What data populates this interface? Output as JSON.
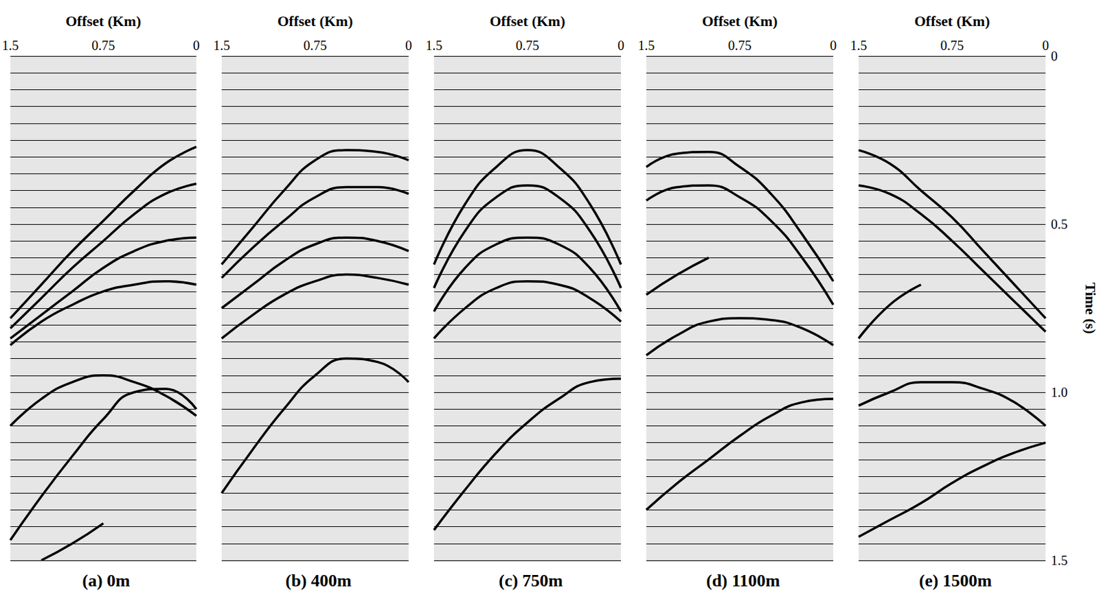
{
  "chart_data": [
    {
      "type": "line",
      "title": "(a) 0m",
      "xlabel": "Offset (Km)",
      "xlim": [
        0,
        1.5
      ],
      "xticks": [
        0,
        0.75,
        1.5
      ],
      "ylim": [
        0,
        1.5
      ],
      "yticks": [
        0,
        0.5,
        {
          "value": 1,
          "label": "1.0"
        },
        1.5
      ],
      "grid": true,
      "tick_labels": "x",
      "x": [
        0,
        0.25,
        0.5,
        0.75,
        1.0,
        1.25,
        1.5
      ],
      "series": [
        {
          "color": "#000000",
          "values": [
            0.27,
            0.32,
            0.4,
            0.49,
            0.58,
            0.68,
            0.78
          ]
        },
        {
          "color": "#000000",
          "values": [
            0.38,
            0.41,
            0.47,
            0.55,
            0.63,
            0.72,
            0.81
          ]
        },
        {
          "color": "#000000",
          "values": [
            0.54,
            0.55,
            0.58,
            0.63,
            0.7,
            0.77,
            0.84
          ]
        },
        {
          "color": "#000000",
          "values": [
            0.68,
            0.67,
            0.68,
            0.7,
            0.74,
            0.79,
            0.86
          ]
        },
        {
          "color": "#000000",
          "values": [
            1.07,
            1.01,
            0.97,
            0.95,
            0.97,
            1.02,
            1.1
          ]
        },
        {
          "color": "#000000",
          "values": [
            1.05,
            0.99,
            1.0,
            1.08,
            1.19,
            1.31,
            1.44
          ]
        },
        {
          "color": "#000000",
          "values": [
            null,
            null,
            null,
            1.39,
            1.45,
            1.5,
            null
          ]
        }
      ]
    },
    {
      "type": "line",
      "title": "(b) 400m",
      "xlabel": "Offset (Km)",
      "xlim": [
        0,
        1.5
      ],
      "xticks": [
        0,
        0.75,
        1.5
      ],
      "ylim": [
        0,
        1.5
      ],
      "yticks": [
        0,
        0.5,
        {
          "value": 1,
          "label": "1.0"
        },
        1.5
      ],
      "grid": true,
      "tick_labels": "x",
      "x": [
        0,
        0.25,
        0.5,
        0.75,
        1.0,
        1.25,
        1.5
      ],
      "series": [
        {
          "color": "#000000",
          "values": [
            0.31,
            0.285,
            0.28,
            0.31,
            0.4,
            0.51,
            0.62
          ]
        },
        {
          "color": "#000000",
          "values": [
            0.41,
            0.39,
            0.39,
            0.42,
            0.49,
            0.57,
            0.66
          ]
        },
        {
          "color": "#000000",
          "values": [
            0.58,
            0.55,
            0.54,
            0.56,
            0.61,
            0.68,
            0.75
          ]
        },
        {
          "color": "#000000",
          "values": [
            0.68,
            0.66,
            0.65,
            0.67,
            0.71,
            0.77,
            0.84
          ]
        },
        {
          "color": "#000000",
          "values": [
            0.97,
            0.91,
            0.9,
            0.95,
            1.05,
            1.17,
            1.3
          ]
        }
      ]
    },
    {
      "type": "line",
      "title": "(c) 750m",
      "xlabel": "Offset (Km)",
      "xlim": [
        0,
        1.5
      ],
      "xticks": [
        0,
        0.75,
        1.5
      ],
      "ylim": [
        0,
        1.5
      ],
      "yticks": [
        0,
        0.5,
        {
          "value": 1,
          "label": "1.0"
        },
        1.5
      ],
      "grid": true,
      "tick_labels": "x",
      "x": [
        0,
        0.25,
        0.5,
        0.75,
        1.0,
        1.25,
        1.5
      ],
      "series": [
        {
          "color": "#000000",
          "values": [
            0.62,
            0.44,
            0.33,
            0.28,
            0.33,
            0.44,
            0.62
          ]
        },
        {
          "color": "#000000",
          "values": [
            0.69,
            0.52,
            0.42,
            0.385,
            0.42,
            0.52,
            0.69
          ]
        },
        {
          "color": "#000000",
          "values": [
            0.76,
            0.63,
            0.56,
            0.54,
            0.56,
            0.63,
            0.76
          ]
        },
        {
          "color": "#000000",
          "values": [
            0.79,
            0.72,
            0.68,
            0.67,
            0.69,
            0.75,
            0.84
          ]
        },
        {
          "color": "#000000",
          "values": [
            0.96,
            0.97,
            1.02,
            1.09,
            1.18,
            1.29,
            1.41
          ]
        }
      ]
    },
    {
      "type": "line",
      "title": "(d) 1100m",
      "xlabel": "Offset (Km)",
      "xlim": [
        0,
        1.5
      ],
      "xticks": [
        0,
        0.75,
        1.5
      ],
      "ylim": [
        0,
        1.5
      ],
      "yticks": [
        0,
        0.5,
        {
          "value": 1,
          "label": "1.0"
        },
        1.5
      ],
      "grid": true,
      "tick_labels": "x",
      "x": [
        0,
        0.25,
        0.5,
        0.75,
        1.0,
        1.25,
        1.5
      ],
      "series": [
        {
          "color": "#000000",
          "values": [
            0.67,
            0.53,
            0.41,
            0.33,
            0.285,
            0.29,
            0.33
          ]
        },
        {
          "color": "#000000",
          "values": [
            0.74,
            0.6,
            0.49,
            0.42,
            0.385,
            0.39,
            0.43
          ]
        },
        {
          "color": "#000000",
          "values": [
            null,
            null,
            null,
            null,
            0.6,
            0.65,
            0.71
          ]
        },
        {
          "color": "#000000",
          "values": [
            0.86,
            0.81,
            0.785,
            0.78,
            0.79,
            0.83,
            0.89
          ]
        },
        {
          "color": "#000000",
          "values": [
            1.02,
            1.03,
            1.07,
            1.13,
            1.2,
            1.27,
            1.35
          ]
        }
      ]
    },
    {
      "type": "line",
      "title": "(e) 1500m",
      "xlabel": "Offset (Km)",
      "ylabel": "Time (s)",
      "xlim": [
        0,
        1.5
      ],
      "xticks": [
        0,
        0.75,
        1.5
      ],
      "ylim": [
        0,
        1.5
      ],
      "yticks": [
        0,
        0.5,
        {
          "value": 1,
          "label": "1.0"
        },
        1.5
      ],
      "grid": true,
      "x": [
        0,
        0.25,
        0.5,
        0.75,
        1.0,
        1.25,
        1.5
      ],
      "series": [
        {
          "color": "#000000",
          "values": [
            0.78,
            0.68,
            0.58,
            0.48,
            0.4,
            0.32,
            0.28
          ]
        },
        {
          "color": "#000000",
          "values": [
            0.82,
            0.73,
            0.64,
            0.55,
            0.47,
            0.41,
            0.385
          ]
        },
        {
          "color": "#000000",
          "values": [
            null,
            null,
            null,
            null,
            0.68,
            0.74,
            0.84
          ]
        },
        {
          "color": "#000000",
          "values": [
            1.1,
            1.03,
            0.99,
            0.97,
            0.97,
            1.0,
            1.04
          ]
        },
        {
          "color": "#000000",
          "values": [
            1.15,
            1.18,
            1.22,
            1.27,
            1.33,
            1.38,
            1.43
          ]
        }
      ]
    }
  ]
}
